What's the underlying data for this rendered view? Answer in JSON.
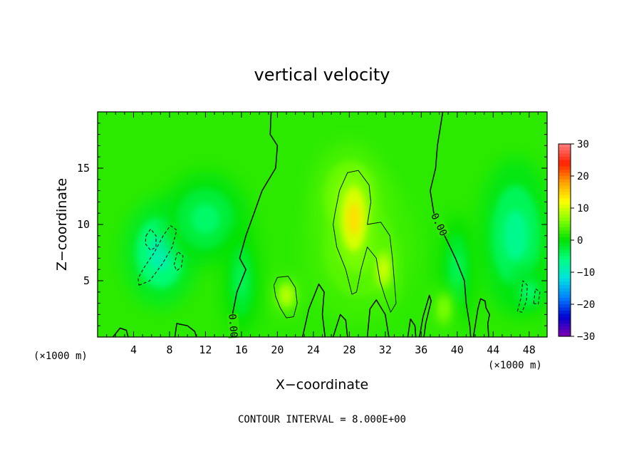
{
  "chart_data": {
    "type": "heatmap",
    "title": "vertical velocity",
    "xlabel": "X−coordinate",
    "ylabel": "Z−coordinate",
    "x_unit_label": "(×1000 m)",
    "x_unit_label_right": "(×1000 m)",
    "footer": "CONTOUR INTERVAL = 8.000E+00",
    "xlim": [
      0,
      50
    ],
    "ylim": [
      0,
      20
    ],
    "x_ticks": [
      4,
      8,
      12,
      16,
      20,
      24,
      28,
      32,
      36,
      40,
      44,
      48
    ],
    "y_ticks": [
      5,
      10,
      15
    ],
    "contour_label": "0.00",
    "contour_interval": 8.0,
    "colorbar": {
      "min": -30,
      "max": 30,
      "ticks": [
        30,
        20,
        10,
        0,
        -10,
        -20,
        -30
      ],
      "tick_labels": [
        "30",
        "20",
        "10",
        "0",
        "−10",
        "−20",
        "−30"
      ],
      "colors": [
        "#8000b0",
        "#0000d0",
        "#0080ff",
        "#00e0e0",
        "#00ff80",
        "#00e000",
        "#80ff00",
        "#ffff00",
        "#ffa000",
        "#ff2000",
        "#ff8080"
      ]
    },
    "background_value": 2,
    "features": [
      {
        "kind": "updraft",
        "x": 28.5,
        "y": 10.5,
        "peak": 14,
        "sx": 1.6,
        "sy": 3.2
      },
      {
        "kind": "updraft",
        "x": 28.0,
        "y": 12.5,
        "peak": 6,
        "sx": 3.2,
        "sy": 3.5
      },
      {
        "kind": "updraft",
        "x": 31.8,
        "y": 6.0,
        "peak": 10,
        "sx": 1.0,
        "sy": 1.8
      },
      {
        "kind": "updraft",
        "x": 21.0,
        "y": 3.7,
        "peak": 9,
        "sx": 1.1,
        "sy": 1.3
      },
      {
        "kind": "updraft",
        "x": 29.0,
        "y": 8.0,
        "peak": 5,
        "sx": 4.5,
        "sy": 5.0
      },
      {
        "kind": "downdraft",
        "x": 7.0,
        "y": 7.5,
        "peak": -9,
        "sx": 3.0,
        "sy": 3.5
      },
      {
        "kind": "downdraft",
        "x": 12.0,
        "y": 10.5,
        "peak": -5,
        "sx": 3.5,
        "sy": 3.0
      },
      {
        "kind": "downdraft",
        "x": 46.5,
        "y": 9.0,
        "peak": -7,
        "sx": 3.0,
        "sy": 5.0
      },
      {
        "kind": "downdraft",
        "x": 48.0,
        "y": 4.0,
        "peak": -5,
        "sx": 1.5,
        "sy": 1.5
      },
      {
        "kind": "downdraft",
        "x": 16.0,
        "y": 5.0,
        "peak": -4,
        "sx": 1.5,
        "sy": 3.5
      },
      {
        "kind": "downdraft",
        "x": 40.0,
        "y": 6.0,
        "peak": -4,
        "sx": 1.5,
        "sy": 3.5
      },
      {
        "kind": "updraft",
        "x": 38.5,
        "y": 2.5,
        "peak": 6,
        "sx": 1.0,
        "sy": 1.5
      }
    ],
    "zero_contours": [
      {
        "label": true,
        "label_at": 18,
        "points": [
          [
            19.3,
            20
          ],
          [
            19.2,
            18
          ],
          [
            20.0,
            17
          ],
          [
            19.8,
            15
          ],
          [
            18.3,
            13
          ],
          [
            17.4,
            11
          ],
          [
            16.5,
            9
          ],
          [
            15.8,
            7
          ],
          [
            16.5,
            6
          ],
          [
            15.5,
            4
          ],
          [
            15.0,
            2
          ],
          [
            15.2,
            0
          ]
        ]
      },
      {
        "label": true,
        "label_at": 4,
        "points": [
          [
            38.4,
            20
          ],
          [
            37.8,
            17
          ],
          [
            37.6,
            15
          ],
          [
            37.0,
            13
          ],
          [
            37.4,
            11
          ],
          [
            38.6,
            9
          ],
          [
            39.8,
            7
          ],
          [
            40.8,
            5
          ],
          [
            41.0,
            3
          ],
          [
            41.4,
            1
          ],
          [
            41.5,
            0
          ]
        ]
      },
      {
        "label": false,
        "points": [
          [
            22.8,
            0
          ],
          [
            23.5,
            2.5
          ],
          [
            24.6,
            4.7
          ],
          [
            25.2,
            4
          ],
          [
            25.0,
            2
          ],
          [
            25.3,
            0
          ]
        ]
      },
      {
        "label": false,
        "points": [
          [
            26.2,
            0
          ],
          [
            27.0,
            2
          ],
          [
            27.6,
            1.5
          ],
          [
            27.8,
            0
          ]
        ]
      },
      {
        "label": false,
        "points": [
          [
            30.0,
            0
          ],
          [
            30.3,
            2.5
          ],
          [
            31.0,
            3.3
          ],
          [
            32.0,
            2
          ],
          [
            32.4,
            0
          ]
        ]
      },
      {
        "label": false,
        "points": [
          [
            34.5,
            0
          ],
          [
            34.8,
            1.6
          ],
          [
            35.3,
            1
          ],
          [
            35.4,
            0
          ]
        ]
      },
      {
        "label": false,
        "points": [
          [
            35.8,
            0
          ],
          [
            36.2,
            1.8
          ],
          [
            36.9,
            3.7
          ],
          [
            37.1,
            3.2
          ],
          [
            36.5,
            1.2
          ],
          [
            36.3,
            0
          ]
        ]
      },
      {
        "label": false,
        "points": [
          [
            41.8,
            0
          ],
          [
            42.3,
            2.5
          ],
          [
            42.6,
            3.4
          ],
          [
            43.1,
            3.2
          ],
          [
            43.2,
            2.6
          ],
          [
            43.6,
            2.0
          ],
          [
            43.4,
            1.2
          ],
          [
            43.5,
            0
          ]
        ]
      },
      {
        "label": false,
        "points": [
          [
            1.7,
            0
          ],
          [
            2.5,
            0.8
          ],
          [
            3.2,
            0.6
          ],
          [
            3.4,
            0
          ]
        ]
      },
      {
        "label": false,
        "points": [
          [
            8.6,
            0
          ],
          [
            8.8,
            1.2
          ],
          [
            10.0,
            1.0
          ],
          [
            10.8,
            0.5
          ],
          [
            11.0,
            0
          ]
        ]
      }
    ],
    "inner_contours": [
      {
        "style": "solid",
        "closed": true,
        "points": [
          [
            26.4,
            11
          ],
          [
            26.9,
            13
          ],
          [
            27.8,
            14.6
          ],
          [
            29.0,
            14.8
          ],
          [
            30.2,
            13.5
          ],
          [
            30.4,
            12
          ],
          [
            30.0,
            10
          ],
          [
            31.5,
            10.2
          ],
          [
            32.5,
            9
          ],
          [
            32.8,
            7
          ],
          [
            33.0,
            5
          ],
          [
            33.2,
            3
          ],
          [
            32.6,
            2.2
          ],
          [
            32.0,
            3.5
          ],
          [
            31.4,
            5
          ],
          [
            31.0,
            7
          ],
          [
            30.0,
            8
          ],
          [
            29.3,
            6
          ],
          [
            28.8,
            4
          ],
          [
            28.3,
            3.8
          ],
          [
            27.6,
            6
          ],
          [
            26.6,
            8
          ],
          [
            26.2,
            10
          ]
        ]
      },
      {
        "style": "solid",
        "closed": true,
        "points": [
          [
            20.0,
            5.3
          ],
          [
            21.2,
            5.4
          ],
          [
            22.0,
            4.4
          ],
          [
            22.2,
            3
          ],
          [
            21.8,
            1.8
          ],
          [
            21.0,
            1.7
          ],
          [
            20.3,
            2.6
          ],
          [
            19.8,
            3.6
          ],
          [
            19.6,
            4.6
          ]
        ]
      },
      {
        "style": "dashed",
        "closed": true,
        "points": [
          [
            4.6,
            4.6
          ],
          [
            5.8,
            5.0
          ],
          [
            7.2,
            6.5
          ],
          [
            8.3,
            8.0
          ],
          [
            8.8,
            9.5
          ],
          [
            8.1,
            9.9
          ],
          [
            7.3,
            9.0
          ],
          [
            6.3,
            7.5
          ],
          [
            5.2,
            6.2
          ],
          [
            4.5,
            5.2
          ]
        ]
      },
      {
        "style": "dashed",
        "closed": true,
        "points": [
          [
            5.4,
            9.0
          ],
          [
            5.9,
            9.6
          ],
          [
            6.5,
            9.0
          ],
          [
            6.5,
            8.0
          ],
          [
            5.9,
            7.7
          ],
          [
            5.3,
            8.3
          ]
        ]
      },
      {
        "style": "dashed",
        "closed": true,
        "points": [
          [
            8.5,
            6.4
          ],
          [
            8.9,
            7.6
          ],
          [
            9.5,
            7.2
          ],
          [
            9.3,
            6.2
          ],
          [
            8.8,
            5.9
          ]
        ]
      },
      {
        "style": "dashed",
        "closed": true,
        "points": [
          [
            46.7,
            2.3
          ],
          [
            47.1,
            3.5
          ],
          [
            47.3,
            5.0
          ],
          [
            47.8,
            4.6
          ],
          [
            47.7,
            3.2
          ],
          [
            47.2,
            2.2
          ]
        ]
      },
      {
        "style": "dashed",
        "closed": true,
        "points": [
          [
            48.5,
            3.0
          ],
          [
            48.7,
            4.3
          ],
          [
            49.2,
            4.0
          ],
          [
            49.0,
            2.9
          ]
        ]
      }
    ]
  }
}
